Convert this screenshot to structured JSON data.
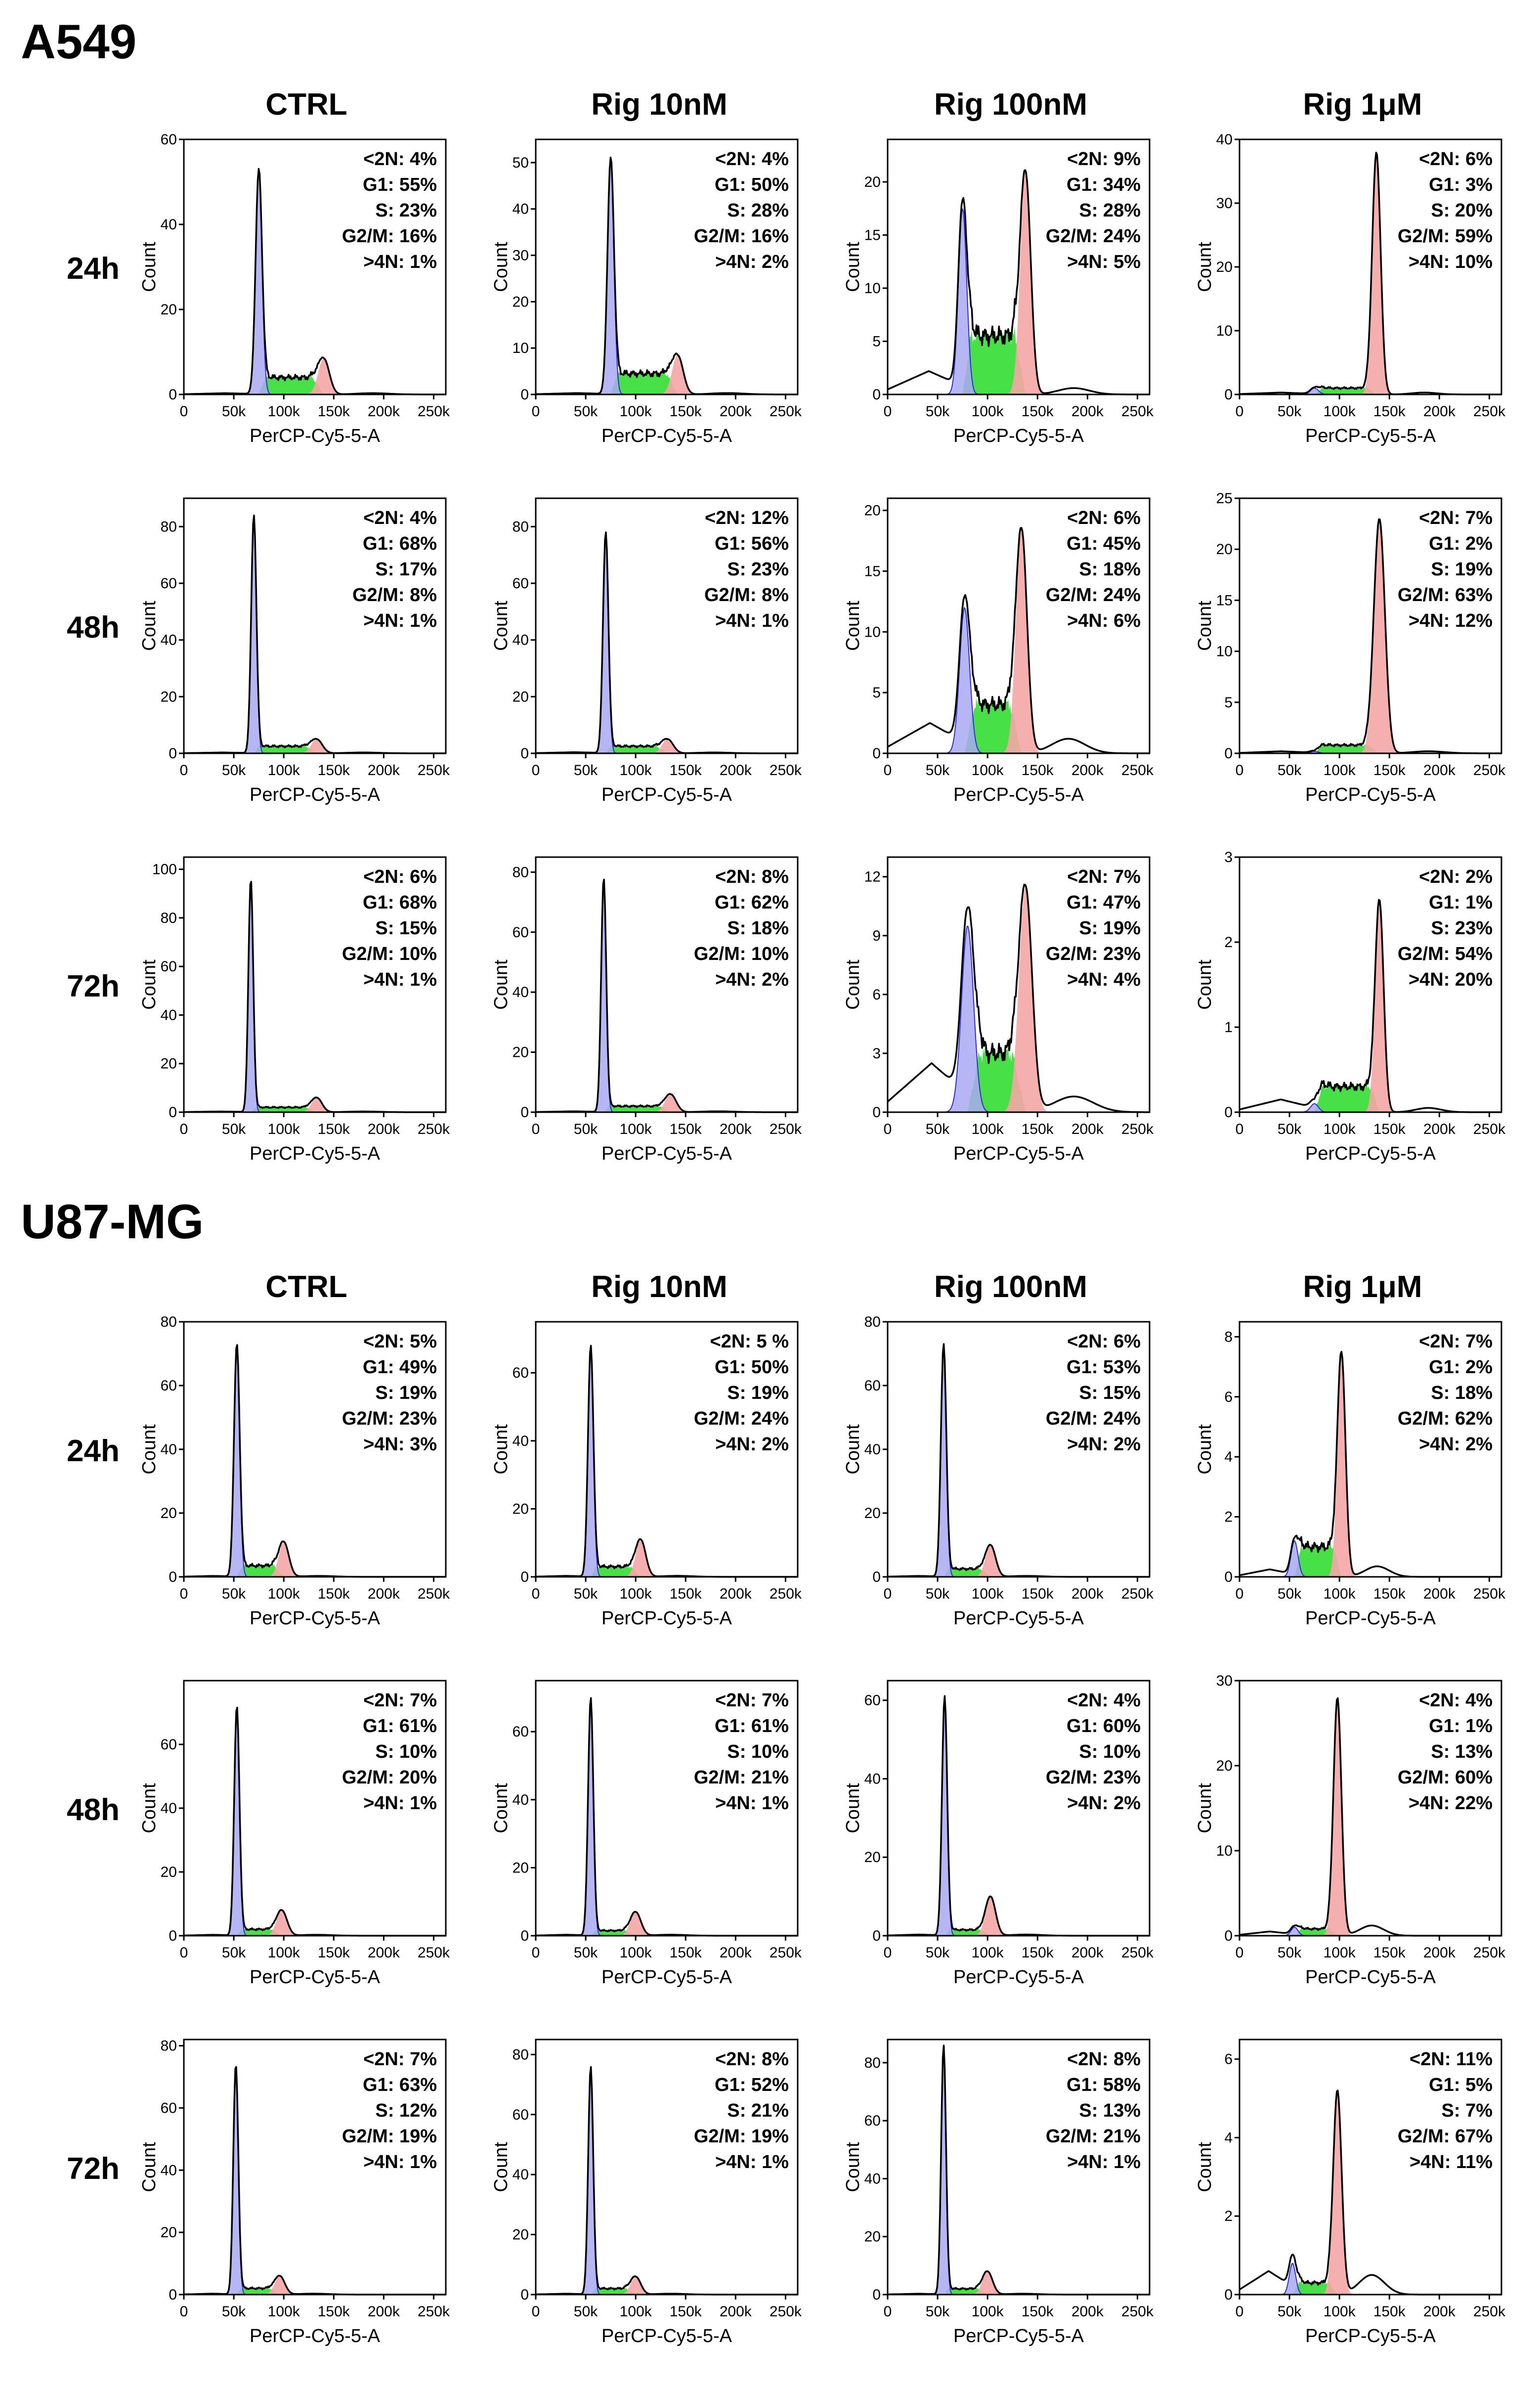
{
  "colors": {
    "g0g1": "#a9a9f2",
    "g0g1_edge": "#2b2bd9",
    "s_phase": "#33dd33",
    "g2m": "#f4a6a6",
    "outline": "#000000"
  },
  "x_axis": {
    "label": "PerCP-Cy5-5-A",
    "ticks": [
      "0",
      "50k",
      "100k",
      "150k",
      "200k",
      "250k"
    ],
    "range": [
      0,
      262144
    ]
  },
  "y_axis_label": "Count",
  "stat_labels": [
    "<2N: ",
    "G1: ",
    "S: ",
    "G2/M: ",
    ">4N: "
  ],
  "columns": [
    "CTRL",
    "Rig 10nM",
    "Rig 100nM",
    "Rig 1μM"
  ],
  "rows": [
    "24h",
    "48h",
    "72h"
  ],
  "chart_data": [
    {
      "title": "A549",
      "type": "histogram",
      "panels": [
        {
          "row": "24h",
          "col": "CTRL",
          "ymax": 60,
          "yticks": [
            0,
            20,
            40,
            60
          ],
          "stats": [
            "4%",
            "55%",
            "23%",
            "16%",
            "1%"
          ],
          "g1": {
            "pos": 75000,
            "h": 53,
            "sd": 3200
          },
          "g2": {
            "pos": 140000,
            "h": 8.5,
            "sd": 5500
          },
          "s_level": 4,
          "sub": 0.3,
          "over": 0.3
        },
        {
          "row": "24h",
          "col": "Rig 10nM",
          "ymax": 55,
          "yticks": [
            0,
            10,
            20,
            30,
            40,
            50
          ],
          "stats": [
            "4%",
            "50%",
            "28%",
            "16%",
            "2%"
          ],
          "g1": {
            "pos": 75000,
            "h": 51,
            "sd": 3200
          },
          "g2": {
            "pos": 142000,
            "h": 8.5,
            "sd": 5500
          },
          "s_level": 4.5,
          "sub": 0.3,
          "over": 0.3
        },
        {
          "row": "24h",
          "col": "Rig 100nM",
          "ymax": 24,
          "yticks": [
            0,
            5,
            10,
            15,
            20
          ],
          "stats": [
            "9%",
            "34%",
            "28%",
            "24%",
            "5%"
          ],
          "g1": {
            "pos": 75000,
            "h": 17.5,
            "sd": 4200
          },
          "g2": {
            "pos": 138000,
            "h": 21,
            "sd": 5200
          },
          "s_level": 5.5,
          "sub": 2.2,
          "over": 0.6
        },
        {
          "row": "24h",
          "col": "Rig 1μM",
          "ymax": 40,
          "yticks": [
            0,
            10,
            20,
            30,
            40
          ],
          "stats": [
            "6%",
            "3%",
            "20%",
            "59%",
            "10%"
          ],
          "g1": {
            "pos": 75000,
            "h": 1,
            "sd": 4000
          },
          "g2": {
            "pos": 137000,
            "h": 38,
            "sd": 4200
          },
          "s_level": 1,
          "sub": 0.3,
          "over": 0.3
        },
        {
          "row": "48h",
          "col": "CTRL",
          "ymax": 90,
          "yticks": [
            0,
            20,
            40,
            60,
            80
          ],
          "stats": [
            "4%",
            "68%",
            "17%",
            "8%",
            "1%"
          ],
          "g1": {
            "pos": 70000,
            "h": 84,
            "sd": 2600
          },
          "g2": {
            "pos": 133000,
            "h": 5,
            "sd": 5500
          },
          "s_level": 2.5,
          "sub": 0.3,
          "over": 0.3
        },
        {
          "row": "48h",
          "col": "Rig 10nM",
          "ymax": 90,
          "yticks": [
            0,
            20,
            40,
            60,
            80
          ],
          "stats": [
            "12%",
            "56%",
            "23%",
            "8%",
            "1%"
          ],
          "g1": {
            "pos": 70000,
            "h": 78,
            "sd": 2700
          },
          "g2": {
            "pos": 132000,
            "h": 5,
            "sd": 5500
          },
          "s_level": 2.5,
          "sub": 0.4,
          "over": 0.3
        },
        {
          "row": "48h",
          "col": "Rig 100nM",
          "ymax": 21,
          "yticks": [
            0,
            5,
            10,
            15,
            20
          ],
          "stats": [
            "6%",
            "45%",
            "18%",
            "24%",
            "6%"
          ],
          "g1": {
            "pos": 77000,
            "h": 12,
            "sd": 5000
          },
          "g2": {
            "pos": 134000,
            "h": 18.5,
            "sd": 5500
          },
          "s_level": 4,
          "sub": 2.5,
          "over": 1.2
        },
        {
          "row": "48h",
          "col": "Rig 1μM",
          "ymax": 25,
          "yticks": [
            0,
            5,
            10,
            15,
            20,
            25
          ],
          "stats": [
            "7%",
            "2%",
            "19%",
            "63%",
            "12%"
          ],
          "g1": {
            "pos": 75000,
            "h": 0.2,
            "sd": 4000
          },
          "g2": {
            "pos": 140000,
            "h": 23,
            "sd": 5500
          },
          "s_level": 0.8,
          "sub": 0.2,
          "over": 0.2
        },
        {
          "row": "72h",
          "col": "CTRL",
          "ymax": 105,
          "yticks": [
            0,
            20,
            40,
            60,
            80,
            100
          ],
          "stats": [
            "6%",
            "68%",
            "15%",
            "10%",
            "1%"
          ],
          "g1": {
            "pos": 67000,
            "h": 96,
            "sd": 2400
          },
          "g2": {
            "pos": 133000,
            "h": 6,
            "sd": 5200
          },
          "s_level": 2,
          "sub": 0.3,
          "over": 0.3
        },
        {
          "row": "72h",
          "col": "Rig 10nM",
          "ymax": 85,
          "yticks": [
            0,
            20,
            40,
            60,
            80
          ],
          "stats": [
            "8%",
            "62%",
            "18%",
            "10%",
            "2%"
          ],
          "g1": {
            "pos": 68000,
            "h": 78,
            "sd": 2500
          },
          "g2": {
            "pos": 135000,
            "h": 6,
            "sd": 5500
          },
          "s_level": 2,
          "sub": 0.3,
          "over": 0.3
        },
        {
          "row": "72h",
          "col": "Rig 100nM",
          "ymax": 13,
          "yticks": [
            0,
            3,
            6,
            9,
            12
          ],
          "stats": [
            "7%",
            "47%",
            "19%",
            "23%",
            "4%"
          ],
          "g1": {
            "pos": 80000,
            "h": 9.5,
            "sd": 6000
          },
          "g2": {
            "pos": 138000,
            "h": 11.5,
            "sd": 6500
          },
          "s_level": 3,
          "sub": 2.5,
          "over": 0.8
        },
        {
          "row": "72h",
          "col": "Rig 1μM",
          "ymax": 3,
          "yticks": [
            0,
            1,
            2,
            3
          ],
          "stats": [
            "2%",
            "1%",
            "23%",
            "54%",
            "20%"
          ],
          "g1": {
            "pos": 75000,
            "h": 0.1,
            "sd": 4000
          },
          "g2": {
            "pos": 140000,
            "h": 2.5,
            "sd": 4200
          },
          "s_level": 0.3,
          "sub": 0.15,
          "over": 0.05
        }
      ]
    },
    {
      "title": "U87-MG",
      "type": "histogram",
      "panels": [
        {
          "row": "24h",
          "col": "CTRL",
          "ymax": 80,
          "yticks": [
            0,
            20,
            40,
            60,
            80
          ],
          "stats": [
            "5%",
            "49%",
            "19%",
            "23%",
            "3%"
          ],
          "g1": {
            "pos": 53000,
            "h": 73,
            "sd": 2800
          },
          "g2": {
            "pos": 100000,
            "h": 11,
            "sd": 5000
          },
          "s_level": 3.5,
          "sub": 0.3,
          "over": 0.3
        },
        {
          "row": "24h",
          "col": "Rig 10nM",
          "ymax": 75,
          "yticks": [
            0,
            20,
            40,
            60
          ],
          "stats": [
            "5 %",
            "50%",
            "19%",
            "24%",
            "2%"
          ],
          "g1": {
            "pos": 55000,
            "h": 68,
            "sd": 2700
          },
          "g2": {
            "pos": 105000,
            "h": 11,
            "sd": 5000
          },
          "s_level": 3,
          "sub": 0.3,
          "over": 0.3
        },
        {
          "row": "24h",
          "col": "Rig 100nM",
          "ymax": 80,
          "yticks": [
            0,
            20,
            40,
            60,
            80
          ],
          "stats": [
            "6%",
            "53%",
            "15%",
            "24%",
            "2%"
          ],
          "g1": {
            "pos": 56000,
            "h": 73,
            "sd": 2700
          },
          "g2": {
            "pos": 103000,
            "h": 10,
            "sd": 5000
          },
          "s_level": 2.5,
          "sub": 0.3,
          "over": 0.3
        },
        {
          "row": "24h",
          "col": "Rig 1μM",
          "ymax": 8.5,
          "yticks": [
            0,
            2,
            4,
            6,
            8
          ],
          "stats": [
            "7%",
            "2%",
            "18%",
            "62%",
            "2%"
          ],
          "g1": {
            "pos": 55000,
            "h": 1.2,
            "sd": 3500
          },
          "g2": {
            "pos": 102000,
            "h": 7.5,
            "sd": 4000
          },
          "s_level": 1,
          "sub": 0.25,
          "over": 0.35
        },
        {
          "row": "48h",
          "col": "CTRL",
          "ymax": 80,
          "yticks": [
            0,
            20,
            40,
            60
          ],
          "stats": [
            "7%",
            "61%",
            "10%",
            "20%",
            "1%"
          ],
          "g1": {
            "pos": 53000,
            "h": 72,
            "sd": 2600
          },
          "g2": {
            "pos": 98000,
            "h": 8,
            "sd": 5200
          },
          "s_level": 2,
          "sub": 0.3,
          "over": 0.3
        },
        {
          "row": "48h",
          "col": "Rig 10nM",
          "ymax": 75,
          "yticks": [
            0,
            20,
            40,
            60
          ],
          "stats": [
            "7%",
            "61%",
            "10%",
            "21%",
            "1%"
          ],
          "g1": {
            "pos": 55000,
            "h": 70,
            "sd": 2600
          },
          "g2": {
            "pos": 100000,
            "h": 7,
            "sd": 5200
          },
          "s_level": 1.5,
          "sub": 0.3,
          "over": 0.3
        },
        {
          "row": "48h",
          "col": "Rig 100nM",
          "ymax": 65,
          "yticks": [
            0,
            20,
            40,
            60
          ],
          "stats": [
            "4%",
            "60%",
            "10%",
            "23%",
            "2%"
          ],
          "g1": {
            "pos": 57000,
            "h": 61,
            "sd": 2600
          },
          "g2": {
            "pos": 103000,
            "h": 10,
            "sd": 5000
          },
          "s_level": 1.5,
          "sub": 0.3,
          "over": 0.3
        },
        {
          "row": "48h",
          "col": "Rig 1μM",
          "ymax": 30,
          "yticks": [
            0,
            10,
            20,
            30
          ],
          "stats": [
            "4%",
            "1%",
            "13%",
            "60%",
            "22%"
          ],
          "g1": {
            "pos": 55000,
            "h": 1,
            "sd": 3500
          },
          "g2": {
            "pos": 98000,
            "h": 28,
            "sd": 4000
          },
          "s_level": 0.8,
          "sub": 0.5,
          "over": 1.2
        },
        {
          "row": "72h",
          "col": "CTRL",
          "ymax": 82,
          "yticks": [
            0,
            20,
            40,
            60,
            80
          ],
          "stats": [
            "7%",
            "63%",
            "12%",
            "19%",
            "1%"
          ],
          "g1": {
            "pos": 52000,
            "h": 74,
            "sd": 2500
          },
          "g2": {
            "pos": 96000,
            "h": 6,
            "sd": 5000
          },
          "s_level": 2,
          "sub": 0.3,
          "over": 0.3
        },
        {
          "row": "72h",
          "col": "Rig 10nM",
          "ymax": 85,
          "yticks": [
            0,
            20,
            40,
            60,
            80
          ],
          "stats": [
            "8%",
            "52%",
            "21%",
            "19%",
            "1%"
          ],
          "g1": {
            "pos": 55000,
            "h": 76,
            "sd": 2500
          },
          "g2": {
            "pos": 100000,
            "h": 6,
            "sd": 5000
          },
          "s_level": 2,
          "sub": 0.3,
          "over": 0.3
        },
        {
          "row": "72h",
          "col": "Rig 100nM",
          "ymax": 88,
          "yticks": [
            0,
            20,
            40,
            60,
            80
          ],
          "stats": [
            "8%",
            "58%",
            "13%",
            "21%",
            "1%"
          ],
          "g1": {
            "pos": 56000,
            "h": 86,
            "sd": 2400
          },
          "g2": {
            "pos": 100000,
            "h": 8,
            "sd": 5000
          },
          "s_level": 2,
          "sub": 0.3,
          "over": 0.3
        },
        {
          "row": "72h",
          "col": "Rig 1μM",
          "ymax": 6.5,
          "yticks": [
            0,
            2,
            4,
            6
          ],
          "stats": [
            "11%",
            "5%",
            "7%",
            "67%",
            "11%"
          ],
          "g1": {
            "pos": 53000,
            "h": 0.8,
            "sd": 3200
          },
          "g2": {
            "pos": 98000,
            "h": 5.2,
            "sd": 4200
          },
          "s_level": 0.3,
          "sub": 0.6,
          "over": 0.5
        }
      ]
    }
  ]
}
